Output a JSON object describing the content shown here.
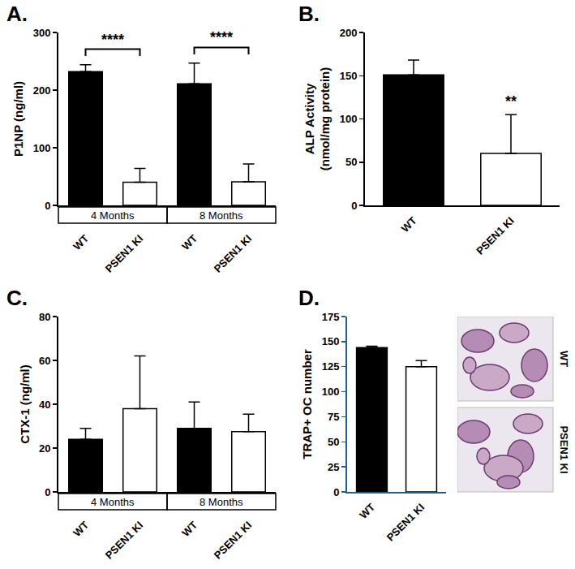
{
  "chart_data": [
    {
      "type": "bar",
      "panel": "A.",
      "ylabel": [
        "P1NP (ng/ml)"
      ],
      "categories": [
        "WT",
        "PSEN1 KI",
        "WT",
        "PSEN1 KI"
      ],
      "groups": [
        "4 Months",
        "4 Months",
        "8 Months",
        "8 Months"
      ],
      "values": [
        232,
        40,
        211,
        41
      ],
      "errors": [
        12,
        24,
        36,
        31
      ],
      "colors": [
        "#000000",
        "#ffffff",
        "#000000",
        "#ffffff"
      ],
      "ylim": [
        0,
        300
      ],
      "yticks": [
        0,
        100,
        200,
        300
      ],
      "grid": false,
      "significance": [
        {
          "from": 0,
          "to": 1,
          "label": "****"
        },
        {
          "from": 2,
          "to": 3,
          "label": "****"
        }
      ]
    },
    {
      "type": "bar",
      "panel": "B.",
      "ylabel": [
        "ALP Activity",
        "(nmol/mg protein)"
      ],
      "categories": [
        "WT",
        "PSEN1 KI"
      ],
      "values": [
        151,
        60
      ],
      "errors": [
        17,
        45
      ],
      "colors": [
        "#000000",
        "#ffffff"
      ],
      "ylim": [
        0,
        200
      ],
      "yticks": [
        0,
        50,
        100,
        150,
        200
      ],
      "grid": false,
      "significance": [
        {
          "at": 1,
          "label": "**"
        }
      ]
    },
    {
      "type": "bar",
      "panel": "C.",
      "ylabel": [
        "CTX-1 (ng/ml)"
      ],
      "categories": [
        "WT",
        "PSEN1 KI",
        "WT",
        "PSEN1 KI"
      ],
      "groups": [
        "4 Months",
        "4 Months",
        "8 Months",
        "8 Months"
      ],
      "values": [
        24,
        38,
        29,
        27.5
      ],
      "errors": [
        5,
        24,
        12,
        8
      ],
      "colors": [
        "#000000",
        "#ffffff",
        "#000000",
        "#ffffff"
      ],
      "ylim": [
        0,
        80
      ],
      "yticks": [
        0,
        20,
        40,
        60,
        80
      ],
      "grid": false,
      "significance": []
    },
    {
      "type": "bar",
      "panel": "D.",
      "ylabel": [
        "TRAP+ OC number"
      ],
      "categories": [
        "WT",
        "PSEN1 KI"
      ],
      "values": [
        144,
        125
      ],
      "errors": [
        1.5,
        6
      ],
      "colors": [
        "#000000",
        "#ffffff"
      ],
      "ylim": [
        0,
        175
      ],
      "yticks": [
        0,
        25,
        50,
        75,
        100,
        125,
        150,
        175
      ],
      "grid": false,
      "significance": [],
      "image_labels": [
        "WT",
        "PSEN1 KI"
      ]
    }
  ]
}
